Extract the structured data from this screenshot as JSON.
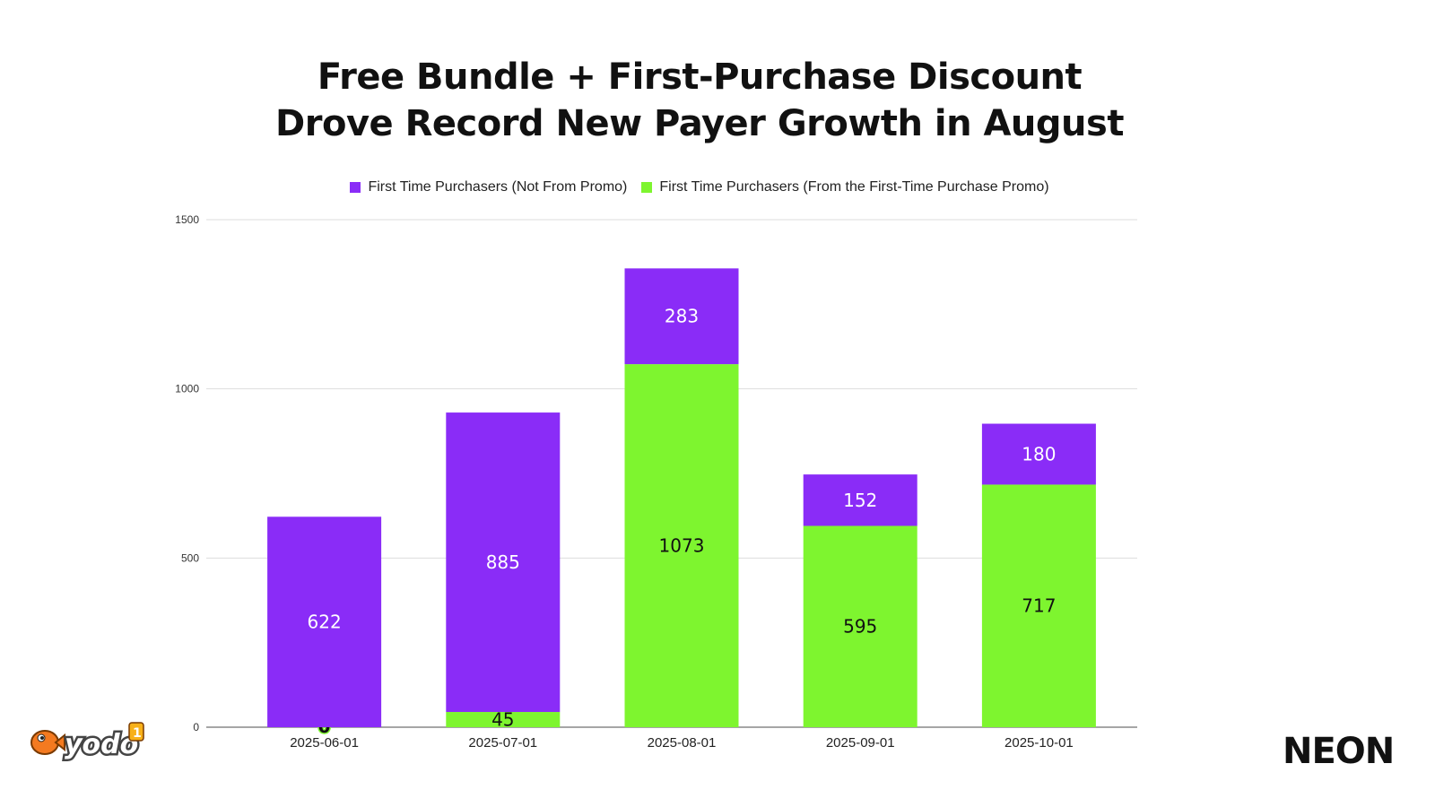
{
  "colors": {
    "not_from_promo": "#8a2cf7",
    "from_promo": "#7ef52f",
    "grid": "#dddddd",
    "axis": "#888888"
  },
  "logos": {
    "left": "yodo1",
    "right": "NEON"
  },
  "chart_data": {
    "type": "bar",
    "stacked": true,
    "title": [
      "Free Bundle + First-Purchase Discount",
      "Drove Record New Payer Growth in August"
    ],
    "xlabel": "",
    "ylabel": "",
    "categories": [
      "2025-06-01",
      "2025-07-01",
      "2025-08-01",
      "2025-09-01",
      "2025-10-01"
    ],
    "series": [
      {
        "name": "First Time Purchasers (From the First-Time Purchase Promo)",
        "color": "#7ef52f",
        "label_color": "#111111",
        "values": [
          0,
          45,
          1073,
          595,
          717
        ]
      },
      {
        "name": "First Time Purchasers (Not From Promo)",
        "color": "#8a2cf7",
        "label_color": "#ffffff",
        "values": [
          622,
          885,
          283,
          152,
          180
        ]
      }
    ],
    "legend_order": [
      1,
      0
    ],
    "yticks": [
      0,
      500,
      1000,
      1500
    ],
    "ylim": [
      0,
      1500
    ],
    "grid": true,
    "legend_position": "top"
  }
}
